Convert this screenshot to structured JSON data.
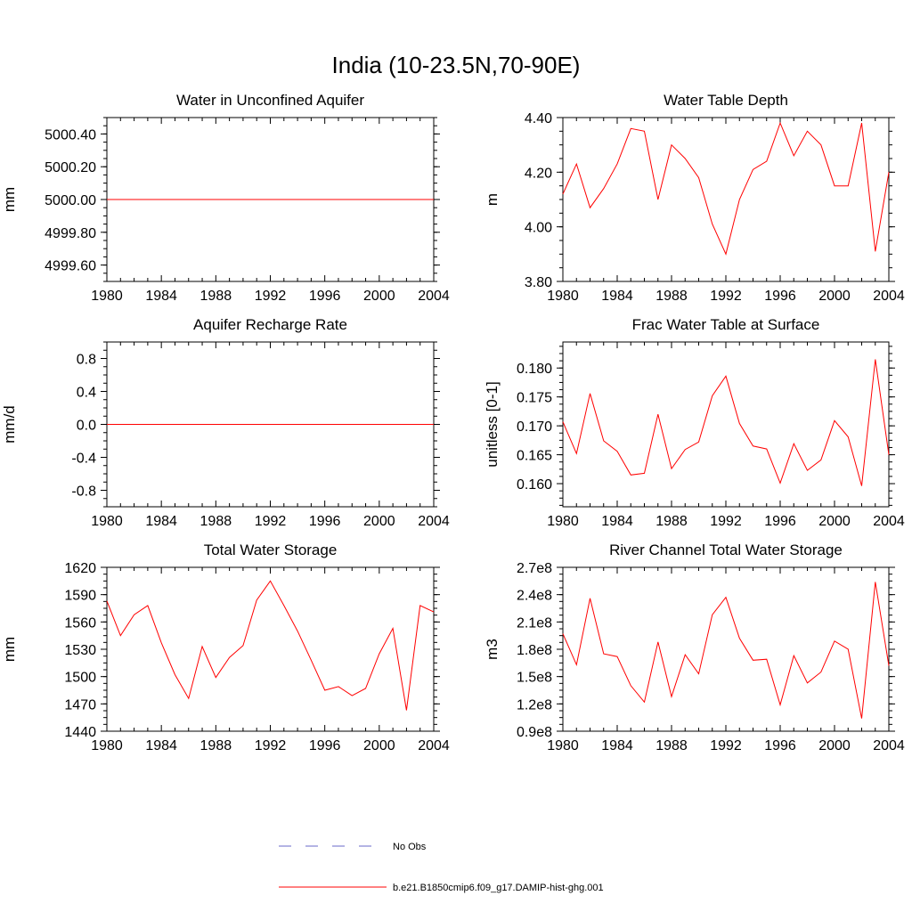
{
  "figure": {
    "title": "India (10-23.5N,70-90E)"
  },
  "legend": {
    "items": [
      {
        "label": "No Obs",
        "color": "#6a6ac8",
        "style": "dashed"
      },
      {
        "label": "b.e21.B1850cmip6.f09_g17.DAMIP-hist-ghg.001",
        "color": "#ff0000",
        "style": "solid"
      }
    ]
  },
  "chart_data": [
    {
      "type": "line",
      "title": "Water in Unconfined Aquifer",
      "ylabel": "mm",
      "xlim": [
        1980,
        2004
      ],
      "ylim": [
        4999.5,
        5000.5
      ],
      "x_ticks": [
        "1980",
        "1984",
        "1988",
        "1992",
        "1996",
        "2000",
        "2004"
      ],
      "y_ticks": [
        {
          "value": 4999.6,
          "label": "4999.60"
        },
        {
          "value": 4999.8,
          "label": "4999.80"
        },
        {
          "value": 5000.0,
          "label": "5000.00"
        },
        {
          "value": 5000.2,
          "label": "5000.20"
        },
        {
          "value": 5000.4,
          "label": "5000.40"
        }
      ],
      "x": [
        1980,
        2004
      ],
      "series": [
        {
          "values": [
            5000.0,
            5000.0
          ],
          "color": "#ff0000"
        }
      ]
    },
    {
      "type": "line",
      "title": "Water Table Depth",
      "ylabel": "m",
      "xlim": [
        1980,
        2004
      ],
      "ylim": [
        3.8,
        4.4
      ],
      "x_ticks": [
        "1980",
        "1984",
        "1988",
        "1992",
        "1996",
        "2000",
        "2004"
      ],
      "y_ticks": [
        {
          "value": 3.8,
          "label": "3.80"
        },
        {
          "value": 4.0,
          "label": "4.00"
        },
        {
          "value": 4.2,
          "label": "4.20"
        },
        {
          "value": 4.4,
          "label": "4.40"
        }
      ],
      "x": [
        1980,
        1981,
        1982,
        1983,
        1984,
        1985,
        1986,
        1987,
        1988,
        1989,
        1990,
        1991,
        1992,
        1993,
        1994,
        1995,
        1996,
        1997,
        1998,
        1999,
        2000,
        2001,
        2002,
        2003,
        2004
      ],
      "series": [
        {
          "values": [
            4.12,
            4.23,
            4.07,
            4.14,
            4.23,
            4.36,
            4.35,
            4.1,
            4.3,
            4.25,
            4.18,
            4.01,
            3.9,
            4.1,
            4.21,
            4.24,
            4.38,
            4.26,
            4.35,
            4.3,
            4.15,
            4.15,
            4.38,
            3.91,
            4.2
          ],
          "color": "#ff0000"
        }
      ]
    },
    {
      "type": "line",
      "title": "Aquifer Recharge Rate",
      "ylabel": "mm/d",
      "xlim": [
        1980,
        2004
      ],
      "ylim": [
        -1.0,
        1.0
      ],
      "x_ticks": [
        "1980",
        "1984",
        "1988",
        "1992",
        "1996",
        "2000",
        "2004"
      ],
      "y_ticks": [
        {
          "value": -0.8,
          "label": "-0.8"
        },
        {
          "value": -0.4,
          "label": "-0.4"
        },
        {
          "value": 0.0,
          "label": "0.0"
        },
        {
          "value": 0.4,
          "label": "0.4"
        },
        {
          "value": 0.8,
          "label": "0.8"
        }
      ],
      "x": [
        1980,
        2004
      ],
      "series": [
        {
          "values": [
            0.0,
            0.0
          ],
          "color": "#ff0000"
        }
      ]
    },
    {
      "type": "line",
      "title": "Frac Water Table at Surface",
      "ylabel": "unitless [0-1]",
      "xlim": [
        1980,
        2004
      ],
      "ylim": [
        0.156,
        0.1845
      ],
      "x_ticks": [
        "1980",
        "1984",
        "1988",
        "1992",
        "1996",
        "2000",
        "2004"
      ],
      "y_ticks": [
        {
          "value": 0.16,
          "label": "0.160"
        },
        {
          "value": 0.165,
          "label": "0.165"
        },
        {
          "value": 0.17,
          "label": "0.170"
        },
        {
          "value": 0.175,
          "label": "0.175"
        },
        {
          "value": 0.18,
          "label": "0.180"
        }
      ],
      "x": [
        1980,
        1981,
        1982,
        1983,
        1984,
        1985,
        1986,
        1987,
        1988,
        1989,
        1990,
        1991,
        1992,
        1993,
        1994,
        1995,
        1996,
        1997,
        1998,
        1999,
        2000,
        2001,
        2002,
        2003,
        2004
      ],
      "series": [
        {
          "values": [
            0.1707,
            0.1652,
            0.1756,
            0.1674,
            0.1656,
            0.1615,
            0.1618,
            0.172,
            0.1626,
            0.1659,
            0.1672,
            0.1752,
            0.1786,
            0.1704,
            0.1665,
            0.166,
            0.1601,
            0.1669,
            0.1623,
            0.1641,
            0.1709,
            0.1681,
            0.1596,
            0.1815,
            0.165
          ],
          "color": "#ff0000"
        }
      ]
    },
    {
      "type": "line",
      "title": "Total Water Storage",
      "ylabel": "mm",
      "xlim": [
        1980,
        2004
      ],
      "ylim": [
        1440,
        1620
      ],
      "x_ticks": [
        "1980",
        "1984",
        "1988",
        "1992",
        "1996",
        "2000",
        "2004"
      ],
      "y_ticks": [
        {
          "value": 1440,
          "label": "1440"
        },
        {
          "value": 1470,
          "label": "1470"
        },
        {
          "value": 1500,
          "label": "1500"
        },
        {
          "value": 1530,
          "label": "1530"
        },
        {
          "value": 1560,
          "label": "1560"
        },
        {
          "value": 1590,
          "label": "1590"
        },
        {
          "value": 1620,
          "label": "1620"
        }
      ],
      "x": [
        1980,
        1981,
        1982,
        1983,
        1984,
        1985,
        1986,
        1987,
        1988,
        1989,
        1990,
        1991,
        1992,
        1993,
        1994,
        1995,
        1996,
        1997,
        1998,
        1999,
        2000,
        2001,
        2002,
        2003,
        2004
      ],
      "series": [
        {
          "values": [
            1583,
            1545,
            1568,
            1578,
            1537,
            1502,
            1476,
            1533,
            1499,
            1521,
            1534,
            1584,
            1605,
            1578,
            1550,
            1518,
            1485,
            1489,
            1479,
            1487,
            1525,
            1553,
            1463,
            1578,
            1571
          ],
          "color": "#ff0000"
        }
      ]
    },
    {
      "type": "line",
      "title": "River Channel Total Water Storage",
      "ylabel": "m3",
      "xlim": [
        1980,
        2004
      ],
      "ylim": [
        90000000,
        270000000
      ],
      "x_ticks": [
        "1980",
        "1984",
        "1988",
        "1992",
        "1996",
        "2000",
        "2004"
      ],
      "y_ticks": [
        {
          "value": 90000000,
          "label": "0.9e8"
        },
        {
          "value": 120000000,
          "label": "1.2e8"
        },
        {
          "value": 150000000,
          "label": "1.5e8"
        },
        {
          "value": 180000000,
          "label": "1.8e8"
        },
        {
          "value": 210000000,
          "label": "2.1e8"
        },
        {
          "value": 240000000,
          "label": "2.4e8"
        },
        {
          "value": 270000000,
          "label": "2.7e8"
        }
      ],
      "x": [
        1980,
        1981,
        1982,
        1983,
        1984,
        1985,
        1986,
        1987,
        1988,
        1989,
        1990,
        1991,
        1992,
        1993,
        1994,
        1995,
        1996,
        1997,
        1998,
        1999,
        2000,
        2001,
        2002,
        2003,
        2004
      ],
      "series": [
        {
          "values": [
            197000000,
            163000000,
            236000000,
            175000000,
            172000000,
            140000000,
            122000000,
            188000000,
            128000000,
            174000000,
            153000000,
            218000000,
            237000000,
            192000000,
            168000000,
            169000000,
            119000000,
            173000000,
            143000000,
            155000000,
            189000000,
            180000000,
            104000000,
            254000000,
            162000000
          ],
          "color": "#ff0000"
        }
      ]
    }
  ]
}
